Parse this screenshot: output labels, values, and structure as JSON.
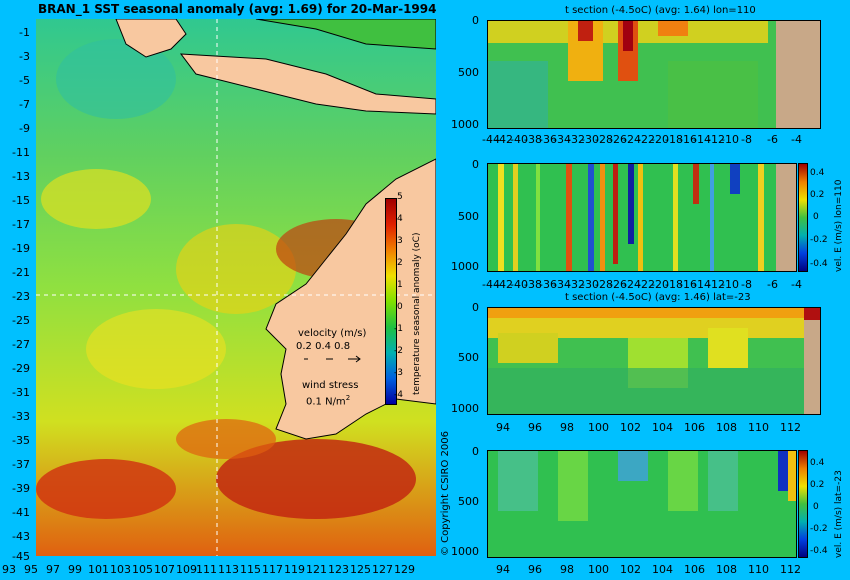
{
  "title": "BRAN_1  SST seasonal anomaly  (avg: 1.69) for 20-Mar-1994",
  "copyright": "© Copyright CSIRO 2006",
  "map": {
    "lat_labels": [
      "-1",
      "-3",
      "-5",
      "-7",
      "-9",
      "-11",
      "-13",
      "-15",
      "-17",
      "-19",
      "-21",
      "-23",
      "-25",
      "-27",
      "-29",
      "-31",
      "-33",
      "-35",
      "-37",
      "-39",
      "-41",
      "-43",
      "-45"
    ],
    "lon_labels": [
      "93",
      "95",
      "97",
      "99",
      "101",
      "103",
      "105",
      "107",
      "109",
      "111",
      "113",
      "115",
      "117",
      "119",
      "121",
      "123",
      "125",
      "127",
      "129"
    ],
    "colorbar": {
      "label": "temperature seasonal anomaly (oC)",
      "ticks": [
        "5",
        "4",
        "3",
        "2",
        "1",
        "0",
        "-1",
        "-2",
        "-3",
        "-4"
      ]
    },
    "velocity_legend": {
      "title": "velocity (m/s)",
      "scale": "0.2 0.4 0.8"
    },
    "wind_legend": {
      "title": "wind stress",
      "scale": "0.1 N/m",
      "scale_sup": "2"
    }
  },
  "panels": [
    {
      "title": "t section (-4.5oC)  (avg: 1.64) lon=110",
      "y_ticks": [
        "0",
        "500",
        "1000"
      ],
      "x_ticks": [
        "-44",
        "-42",
        "-40",
        "-38",
        "-36",
        "-34",
        "-32",
        "-30",
        "-28",
        "-26",
        "-24",
        "-22",
        "-20",
        "-18",
        "-16",
        "-14",
        "-12",
        "-10",
        "-8",
        "-6",
        "-4"
      ]
    },
    {
      "title": "",
      "y_ticks": [
        "0",
        "500",
        "1000"
      ],
      "x_ticks": [
        "-44",
        "-42",
        "-40",
        "-38",
        "-36",
        "-34",
        "-32",
        "-30",
        "-28",
        "-26",
        "-24",
        "-22",
        "-20",
        "-18",
        "-16",
        "-14",
        "-12",
        "-10",
        "-8",
        "-6",
        "-4"
      ],
      "colorbar_label": "vel. E (m/s) lon=110",
      "colorbar_ticks": [
        "0.4",
        "0.2",
        "0",
        "-0.2",
        "-0.4"
      ]
    },
    {
      "title": "t section (-4.5oC)  (avg: 1.46) lat=-23",
      "y_ticks": [
        "0",
        "500",
        "1000"
      ],
      "x_ticks": [
        "94",
        "96",
        "98",
        "100",
        "102",
        "104",
        "106",
        "108",
        "110",
        "112"
      ]
    },
    {
      "title": "",
      "y_ticks": [
        "0",
        "500",
        "1000"
      ],
      "x_ticks": [
        "94",
        "96",
        "98",
        "100",
        "102",
        "104",
        "106",
        "108",
        "110",
        "112"
      ],
      "colorbar_label": "vel. E (m/s) lat=-23",
      "colorbar_ticks": [
        "0.4",
        "0.2",
        "0",
        "-0.2",
        "-0.4"
      ]
    }
  ]
}
